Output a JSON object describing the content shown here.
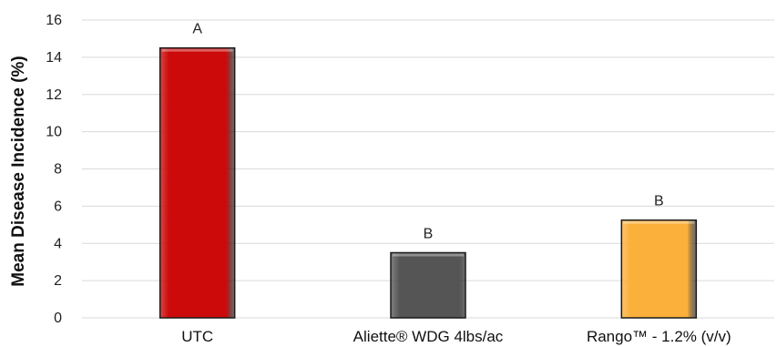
{
  "chart_data": {
    "type": "bar",
    "title": "",
    "xlabel": "",
    "ylabel": "Mean Disease Incidence (%)",
    "ylim": [
      0,
      16
    ],
    "yticks": [
      0,
      2,
      4,
      6,
      8,
      10,
      12,
      14,
      16
    ],
    "grid": true,
    "categories": [
      "UTC",
      "Aliette® WDG 4lbs/ac",
      "Rango™ - 1.2% (v/v)"
    ],
    "values": [
      14.5,
      3.5,
      5.25
    ],
    "letters": [
      "A",
      "B",
      "B"
    ],
    "colors": [
      "#cc0a0a",
      "#555555",
      "#fbb03b"
    ]
  }
}
